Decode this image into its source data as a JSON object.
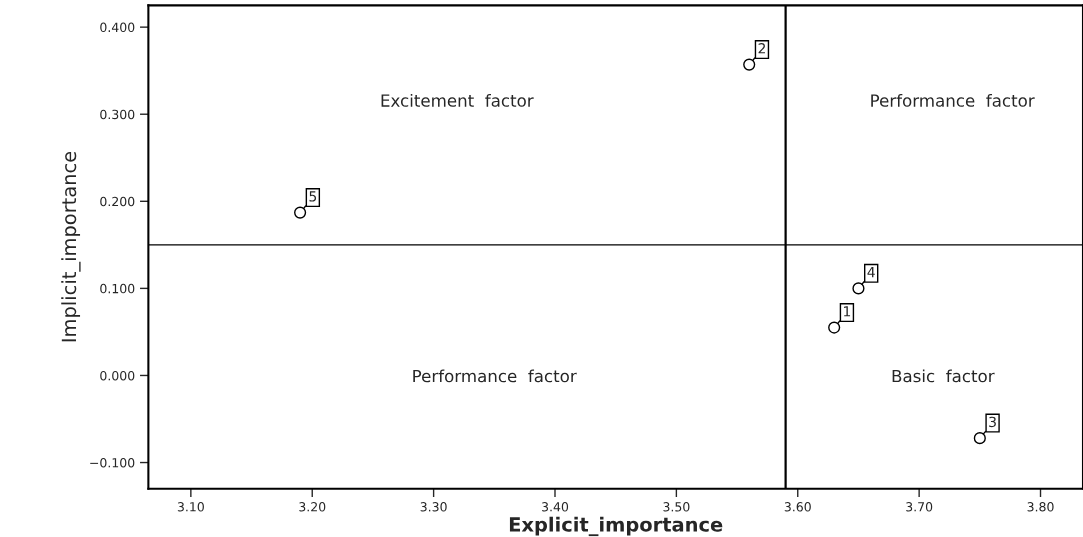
{
  "chart_data": {
    "type": "scatter",
    "xlabel": "Explicit_importance",
    "ylabel": "Implicit_importance",
    "x": [
      3.63,
      3.56,
      3.75,
      3.65,
      3.19
    ],
    "values": [
      0.055,
      0.357,
      -0.072,
      0.1,
      0.187
    ],
    "color": "#ffffff",
    "marker": "circle",
    "grid": false,
    "legend": false,
    "xlim": [
      3.065,
      3.835
    ],
    "ylim": [
      -0.13,
      0.425
    ],
    "xticks": [
      {
        "value": 3.1,
        "label": "3.10"
      },
      {
        "value": 3.2,
        "label": "3.20"
      },
      {
        "value": 3.3,
        "label": "3.30"
      },
      {
        "value": 3.4,
        "label": "3.40"
      },
      {
        "value": 3.5,
        "label": "3.50"
      },
      {
        "value": 3.6,
        "label": "3.60"
      },
      {
        "value": 3.7,
        "label": "3.70"
      },
      {
        "value": 3.8,
        "label": "3.80"
      }
    ],
    "yticks": [
      {
        "value": -0.1,
        "label": "−0.100"
      },
      {
        "value": 0.0,
        "label": "0.000"
      },
      {
        "value": 0.1,
        "label": "0.100"
      },
      {
        "value": 0.2,
        "label": "0.200"
      },
      {
        "value": 0.3,
        "label": "0.300"
      },
      {
        "value": 0.4,
        "label": "0.400"
      }
    ],
    "ref_lines": [
      {
        "axis": "x",
        "value": 3.59,
        "color": "#000000"
      },
      {
        "axis": "y",
        "value": 0.15,
        "color": "#000000"
      }
    ],
    "annotations": [
      {
        "text": "1",
        "x": 3.63,
        "y": 0.055
      },
      {
        "text": "2",
        "x": 3.56,
        "y": 0.357
      },
      {
        "text": "3",
        "x": 3.75,
        "y": -0.072
      },
      {
        "text": "4",
        "x": 3.65,
        "y": 0.1
      },
      {
        "text": "5",
        "x": 3.19,
        "y": 0.187
      },
      "Excitement  factor",
      "Performance  factor",
      "Performance  factor",
      "Basic  factor"
    ]
  }
}
